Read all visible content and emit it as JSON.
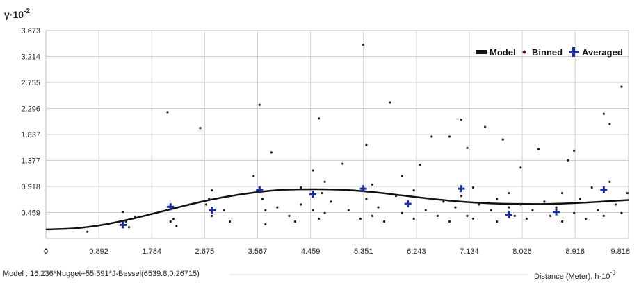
{
  "chart_data": {
    "type": "scatter",
    "y_axis_label": "γ·10",
    "y_axis_label_exp": "-2",
    "x_axis_label": "Distance (Meter), h·10",
    "x_axis_label_exp": "-3",
    "model_text": "Model : 16.236*Nugget+55.591*J-Bessel(6539.8,0.26715)",
    "x_ticks": [
      "0",
      "0.892",
      "1.784",
      "2.675",
      "3.567",
      "4.459",
      "5.351",
      "6.243",
      "7.134",
      "8.026",
      "8.918",
      "9.818"
    ],
    "y_ticks": [
      "0.459",
      "0.918",
      "1.377",
      "1.837",
      "2.296",
      "2.755",
      "3.214",
      "3.673"
    ],
    "xlim": [
      0,
      9.818
    ],
    "ylim": [
      0,
      3.673
    ],
    "grid": true,
    "legend_position": "top-right",
    "legend": {
      "model": "Model",
      "binned": "Binned",
      "averaged": "Averaged"
    },
    "colors": {
      "model": "#111111",
      "binned": "#6b0f1a",
      "averaged": "#1c2f9e",
      "grid": "#cfcfcf"
    },
    "series": [
      {
        "name": "Model",
        "kind": "line",
        "x": [
          0,
          0.5,
          1.0,
          1.5,
          2.0,
          2.5,
          3.0,
          3.5,
          4.0,
          4.5,
          5.0,
          5.5,
          6.0,
          6.5,
          7.0,
          7.5,
          8.0,
          8.5,
          9.0,
          9.5,
          9.818
        ],
        "y": [
          0.16,
          0.18,
          0.25,
          0.36,
          0.49,
          0.62,
          0.73,
          0.81,
          0.86,
          0.87,
          0.86,
          0.82,
          0.76,
          0.7,
          0.65,
          0.62,
          0.61,
          0.61,
          0.63,
          0.66,
          0.68
        ]
      },
      {
        "name": "Averaged",
        "kind": "cross",
        "x": [
          1.3,
          2.1,
          2.8,
          3.6,
          4.5,
          5.35,
          6.1,
          7.0,
          7.8,
          8.6,
          9.4
        ],
        "y": [
          0.24,
          0.56,
          0.5,
          0.86,
          0.78,
          0.88,
          0.61,
          0.88,
          0.42,
          0.47,
          0.86
        ]
      },
      {
        "name": "Binned",
        "kind": "dot",
        "x": [
          0.7,
          1.3,
          1.35,
          1.4,
          1.5,
          2.05,
          2.1,
          2.15,
          2.2,
          2.6,
          2.7,
          2.75,
          2.8,
          2.8,
          3.0,
          3.1,
          3.5,
          3.6,
          3.6,
          3.65,
          3.7,
          3.7,
          3.8,
          3.9,
          4.1,
          4.2,
          4.3,
          4.3,
          4.5,
          4.5,
          4.6,
          4.6,
          4.65,
          4.7,
          4.7,
          4.8,
          5.0,
          5.1,
          5.3,
          5.35,
          5.4,
          5.4,
          5.5,
          5.5,
          5.6,
          5.7,
          5.8,
          5.9,
          6.0,
          6.0,
          6.1,
          6.2,
          6.2,
          6.3,
          6.4,
          6.5,
          6.5,
          6.6,
          6.7,
          6.8,
          6.8,
          6.9,
          7.0,
          7.0,
          7.1,
          7.1,
          7.2,
          7.2,
          7.3,
          7.4,
          7.5,
          7.6,
          7.6,
          7.7,
          7.8,
          7.8,
          7.9,
          8.0,
          8.0,
          8.1,
          8.2,
          8.3,
          8.4,
          8.5,
          8.6,
          8.7,
          8.7,
          8.8,
          8.9,
          8.9,
          9.0,
          9.1,
          9.2,
          9.3,
          9.4,
          9.4,
          9.5,
          9.5,
          9.6,
          9.7,
          9.7,
          9.8
        ],
        "y": [
          0.12,
          0.47,
          0.3,
          0.2,
          0.38,
          2.23,
          0.3,
          0.35,
          0.22,
          1.95,
          0.6,
          0.7,
          0.4,
          0.85,
          0.5,
          0.3,
          1.1,
          0.9,
          2.36,
          0.7,
          0.5,
          0.25,
          1.52,
          0.55,
          0.4,
          0.3,
          0.6,
          0.9,
          1.2,
          0.5,
          0.35,
          2.12,
          0.8,
          1.0,
          0.45,
          0.65,
          1.32,
          0.5,
          0.35,
          3.42,
          1.65,
          0.7,
          0.4,
          0.95,
          0.55,
          0.3,
          2.4,
          0.75,
          0.45,
          1.1,
          0.6,
          0.85,
          0.35,
          1.3,
          0.5,
          0.7,
          1.8,
          0.4,
          0.65,
          1.8,
          0.3,
          0.55,
          2.1,
          0.75,
          1.6,
          0.4,
          0.9,
          0.35,
          0.6,
          1.97,
          0.5,
          0.7,
          0.3,
          1.75,
          0.55,
          0.8,
          0.4,
          1.25,
          0.6,
          0.35,
          0.5,
          1.58,
          0.65,
          0.4,
          0.55,
          0.3,
          0.8,
          1.38,
          1.55,
          0.45,
          0.7,
          0.35,
          0.9,
          0.5,
          2.2,
          0.4,
          1.0,
          2.02,
          0.6,
          0.45,
          2.68,
          0.8
        ]
      }
    ]
  }
}
